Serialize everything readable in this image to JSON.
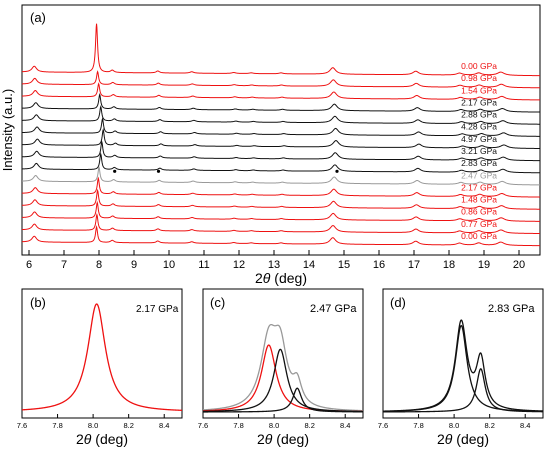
{
  "chart_data": [
    {
      "type": "line",
      "panel_label": "(a)",
      "xlabel_prefix": "2",
      "xlabel_theta": "θ",
      "xlabel_suffix": " (deg)",
      "ylabel": "Intensity (a.u.)",
      "xlim": [
        5.8,
        20.6
      ],
      "xticks": [
        "6",
        "7",
        "8",
        "9",
        "10",
        "11",
        "12",
        "13",
        "14",
        "15",
        "16",
        "17",
        "18",
        "19",
        "20"
      ],
      "peaks": [
        {
          "x": 6.15,
          "height": 0.9,
          "width": 0.08
        },
        {
          "x": 8.38,
          "height": 0.35,
          "width": 0.06
        },
        {
          "x": 9.68,
          "height": 0.3,
          "width": 0.06
        },
        {
          "x": 10.65,
          "height": 0.22,
          "width": 0.07
        },
        {
          "x": 11.85,
          "height": 0.15,
          "width": 0.07
        },
        {
          "x": 12.35,
          "height": 0.12,
          "width": 0.07
        },
        {
          "x": 13.2,
          "height": 0.15,
          "width": 0.07
        },
        {
          "x": 14.68,
          "height": 1.0,
          "width": 0.1
        },
        {
          "x": 17.05,
          "height": 0.55,
          "width": 0.1
        },
        {
          "x": 18.3,
          "height": 0.3,
          "width": 0.1
        },
        {
          "x": 18.85,
          "height": 0.35,
          "width": 0.1
        },
        {
          "x": 19.48,
          "height": 0.5,
          "width": 0.12
        }
      ],
      "series": [
        {
          "name": "0.00 GPa",
          "color": "#ee1111",
          "main_peak": 7.93,
          "main_height": 7.5,
          "shift": 0.0
        },
        {
          "name": "0.98 GPa",
          "color": "#ee1111",
          "main_peak": 7.96,
          "main_height": 2.0,
          "shift": 0.03
        },
        {
          "name": "1.54 GPa",
          "color": "#ee1111",
          "main_peak": 7.99,
          "main_height": 2.0,
          "shift": 0.06
        },
        {
          "name": "2.17 GPa",
          "color": "#111111",
          "main_peak": 8.02,
          "main_height": 2.2,
          "shift": 0.09
        },
        {
          "name": "2.88 GPa",
          "color": "#111111",
          "main_peak": 8.05,
          "main_height": 2.2,
          "shift": 0.12
        },
        {
          "name": "4.28 GPa",
          "color": "#111111",
          "main_peak": 8.1,
          "main_height": 2.2,
          "shift": 0.16
        },
        {
          "name": "4.97 GPa",
          "color": "#111111",
          "main_peak": 8.12,
          "main_height": 2.4,
          "shift": 0.18
        },
        {
          "name": "3.21 GPa",
          "color": "#111111",
          "main_peak": 8.08,
          "main_height": 2.4,
          "shift": 0.14
        },
        {
          "name": "2.83 GPa",
          "color": "#111111",
          "main_peak": 8.05,
          "main_height": 2.4,
          "shift": 0.12
        },
        {
          "name": "2.47 GPa",
          "color": "#999999",
          "main_peak": 8.0,
          "main_height": 2.2,
          "shift": 0.08
        },
        {
          "name": "2.17 GPa",
          "color": "#ee1111",
          "main_peak": 7.98,
          "main_height": 2.4,
          "shift": 0.06
        },
        {
          "name": "1.48 GPa",
          "color": "#ee1111",
          "main_peak": 7.96,
          "main_height": 2.4,
          "shift": 0.04
        },
        {
          "name": "0.86 GPa",
          "color": "#ee1111",
          "main_peak": 7.95,
          "main_height": 2.4,
          "shift": 0.02
        },
        {
          "name": "0.77 GPa",
          "color": "#ee1111",
          "main_peak": 7.94,
          "main_height": 2.4,
          "shift": 0.01
        },
        {
          "name": "0.00 GPa",
          "color": "#ee1111",
          "main_peak": 7.93,
          "main_height": 2.4,
          "shift": 0.0
        }
      ],
      "markers": [
        {
          "x": 8.45
        },
        {
          "x": 9.7
        },
        {
          "x": 14.8
        }
      ]
    },
    {
      "type": "line",
      "panel_label": "(b)",
      "pressure": "2.17 GPa",
      "xlim": [
        7.6,
        8.5
      ],
      "xticks": [
        "7.6",
        "7.8",
        "8.0",
        "8.2",
        "8.4"
      ],
      "xlabel_prefix": "2",
      "xlabel_theta": "θ",
      "xlabel_suffix": " (deg)",
      "series": [
        {
          "color": "#ee1111",
          "components": [
            {
              "x0": 8.02,
              "height": 1.0,
              "width": 0.06
            }
          ]
        }
      ]
    },
    {
      "type": "line",
      "panel_label": "(c)",
      "pressure": "2.47 GPa",
      "xlim": [
        7.6,
        8.5
      ],
      "xticks": [
        "7.6",
        "7.8",
        "8.0",
        "8.2",
        "8.4"
      ],
      "xlabel_prefix": "2",
      "xlabel_theta": "θ",
      "xlabel_suffix": " (deg)",
      "series": [
        {
          "color": "#999999",
          "components": [
            {
              "x0": 7.97,
              "height": 0.62,
              "width": 0.055
            },
            {
              "x0": 8.035,
              "height": 0.5,
              "width": 0.045
            },
            {
              "x0": 8.13,
              "height": 0.2,
              "width": 0.03
            }
          ]
        },
        {
          "color": "#ee1111",
          "components": [
            {
              "x0": 7.97,
              "height": 0.62,
              "width": 0.05
            }
          ]
        },
        {
          "color": "#111111",
          "components": [
            {
              "x0": 8.035,
              "height": 0.58,
              "width": 0.045
            }
          ]
        },
        {
          "color": "#111111",
          "components": [
            {
              "x0": 8.13,
              "height": 0.22,
              "width": 0.03
            }
          ]
        }
      ]
    },
    {
      "type": "line",
      "panel_label": "(d)",
      "pressure": "2.83 GPa",
      "xlim": [
        7.6,
        8.5
      ],
      "xticks": [
        "7.6",
        "7.8",
        "8.0",
        "8.2",
        "8.4"
      ],
      "xlabel_prefix": "2",
      "xlabel_theta": "θ",
      "xlabel_suffix": " (deg)",
      "series": [
        {
          "color": "#111111",
          "components": [
            {
              "x0": 8.04,
              "height": 0.82,
              "width": 0.04
            },
            {
              "x0": 8.15,
              "height": 0.45,
              "width": 0.03
            }
          ]
        },
        {
          "color": "#111111",
          "components": [
            {
              "x0": 8.04,
              "height": 0.8,
              "width": 0.04
            }
          ]
        },
        {
          "color": "#111111",
          "components": [
            {
              "x0": 8.15,
              "height": 0.4,
              "width": 0.03
            }
          ]
        }
      ]
    }
  ]
}
